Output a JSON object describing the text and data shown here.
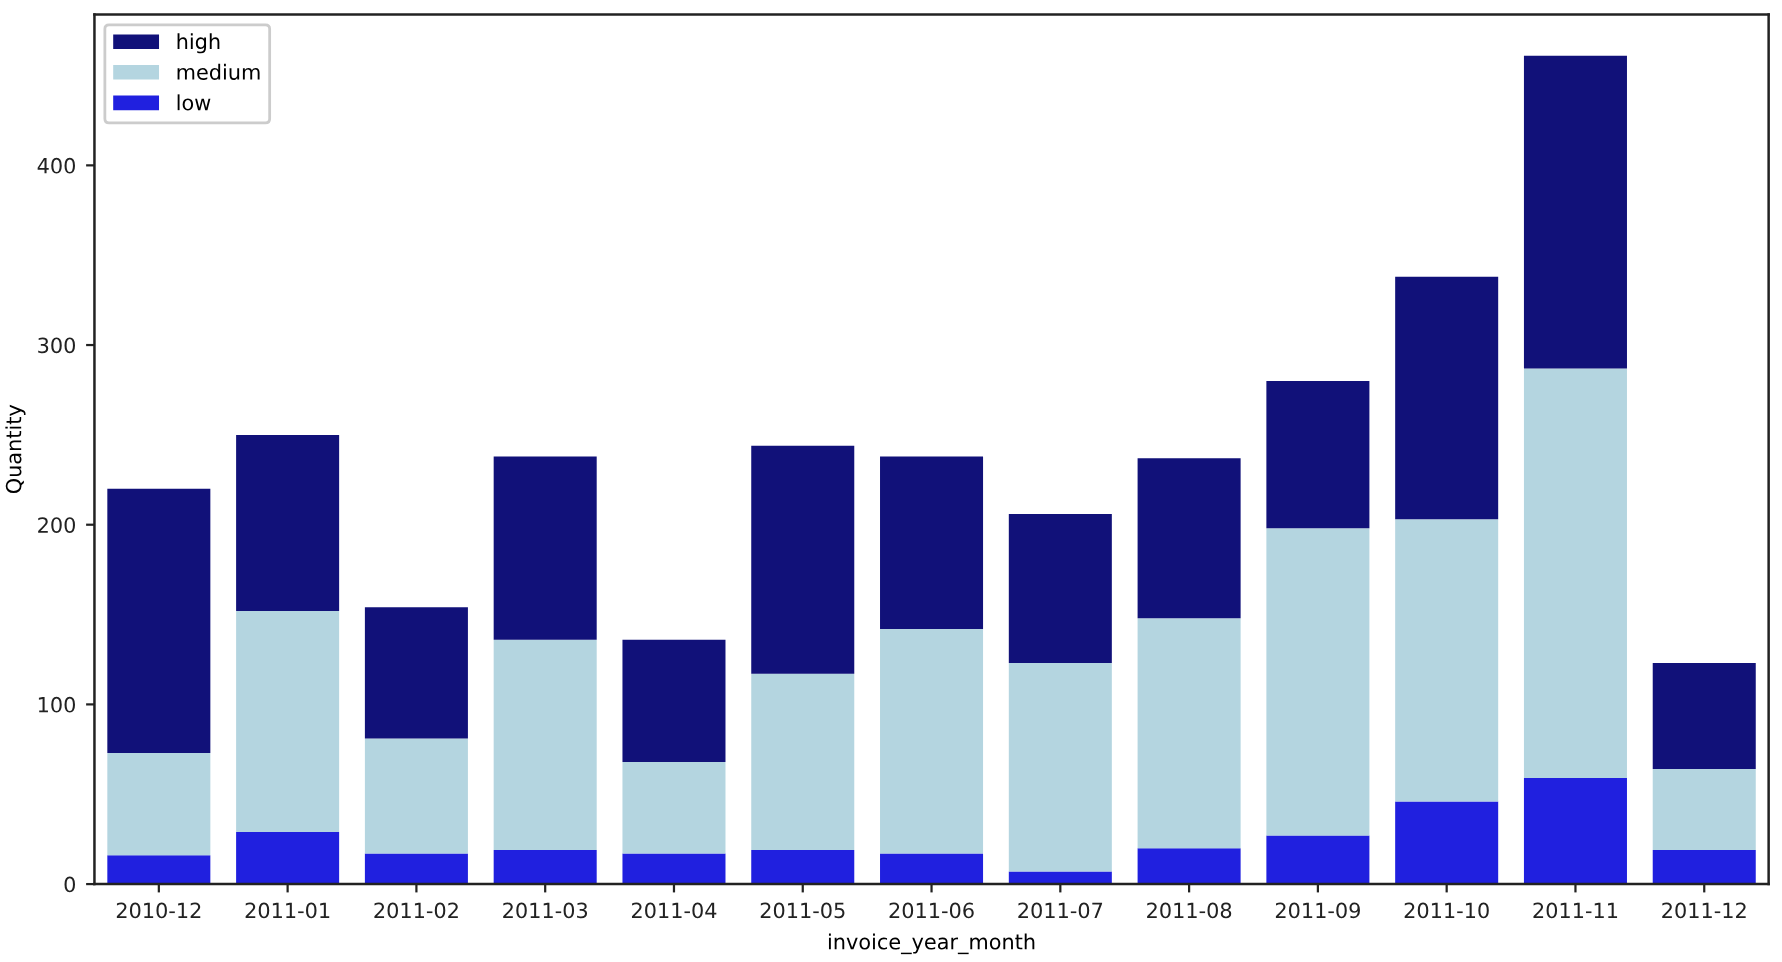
{
  "chart_data": {
    "type": "bar",
    "stacked": true,
    "xlabel": "invoice_year_month",
    "ylabel": "Quantity",
    "categories": [
      "2010-12",
      "2011-01",
      "2011-02",
      "2011-03",
      "2011-04",
      "2011-05",
      "2011-06",
      "2011-07",
      "2011-08",
      "2011-09",
      "2011-10",
      "2011-11",
      "2011-12"
    ],
    "series": [
      {
        "name": "low",
        "color": "#2020df",
        "values": [
          16,
          29,
          17,
          19,
          17,
          19,
          17,
          7,
          20,
          27,
          46,
          59,
          19
        ]
      },
      {
        "name": "medium",
        "color": "#b4d5e0",
        "values": [
          57,
          123,
          64,
          117,
          51,
          98,
          125,
          116,
          128,
          171,
          157,
          228,
          45
        ]
      },
      {
        "name": "high",
        "color": "#111179",
        "values": [
          147,
          98,
          73,
          102,
          68,
          127,
          96,
          83,
          89,
          82,
          135,
          174,
          59
        ]
      }
    ],
    "ylim": [
      0,
      484
    ],
    "yticks": [
      0,
      100,
      200,
      300,
      400
    ],
    "grid": false,
    "legend": "top left"
  }
}
